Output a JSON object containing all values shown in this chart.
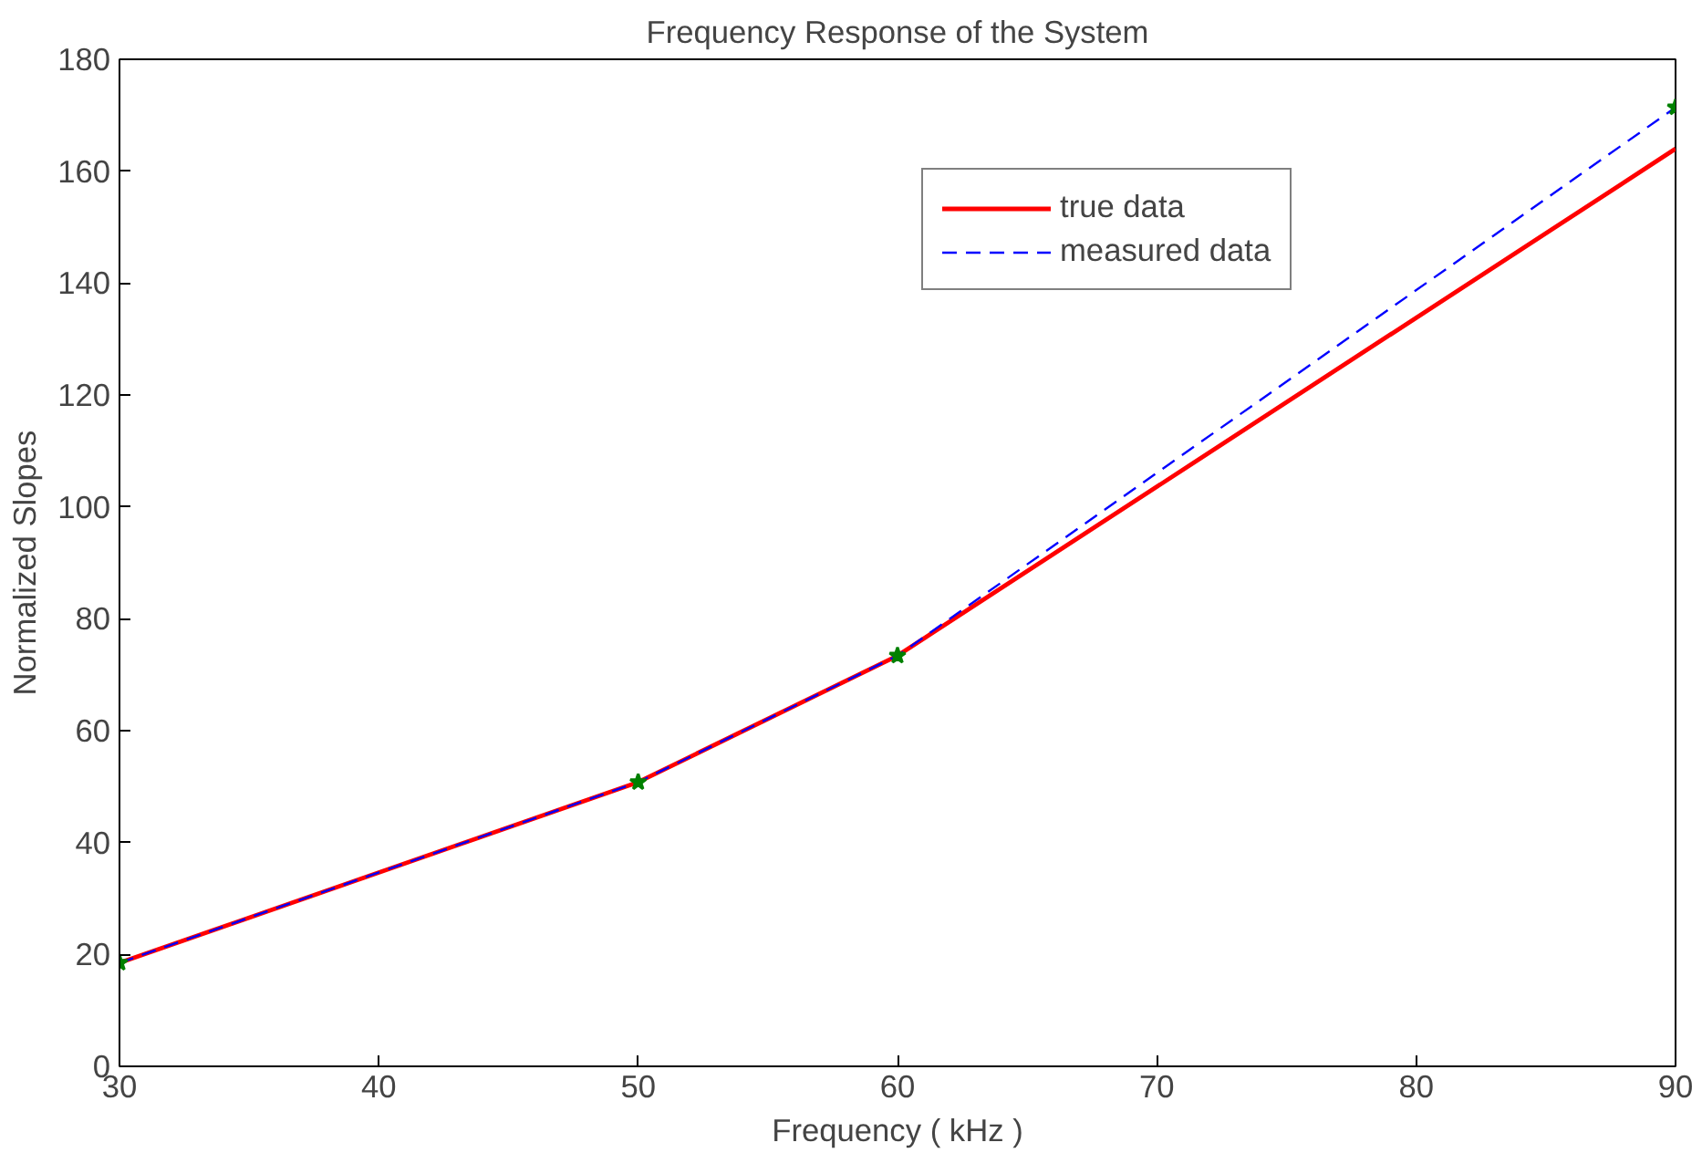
{
  "chart_data": {
    "type": "line",
    "title": "Frequency Response of the System",
    "xlabel": "Frequency ( kHz )",
    "ylabel": "Normalized Slopes",
    "x": [
      30,
      50,
      60,
      90
    ],
    "series": [
      {
        "name": "true data",
        "color": "#ff0000",
        "values": [
          18.5,
          50.8,
          73.4,
          164
        ],
        "line_style": "solid"
      },
      {
        "name": "measured data",
        "color": "#0000ff",
        "values": [
          18.5,
          50.8,
          73.4,
          171.4
        ],
        "line_style": "dashed"
      },
      {
        "type": "scatter",
        "color": "#008000",
        "values": [
          18.5,
          50.8,
          73.4,
          171.4
        ],
        "marker": "star"
      }
    ],
    "xlim": [
      30,
      90
    ],
    "ylim": [
      0,
      180
    ],
    "xticks": [
      30,
      40,
      50,
      60,
      70,
      80,
      90
    ],
    "yticks": [
      0,
      20,
      40,
      60,
      80,
      100,
      120,
      140,
      160,
      180
    ],
    "grid": false,
    "legend": "top right"
  }
}
